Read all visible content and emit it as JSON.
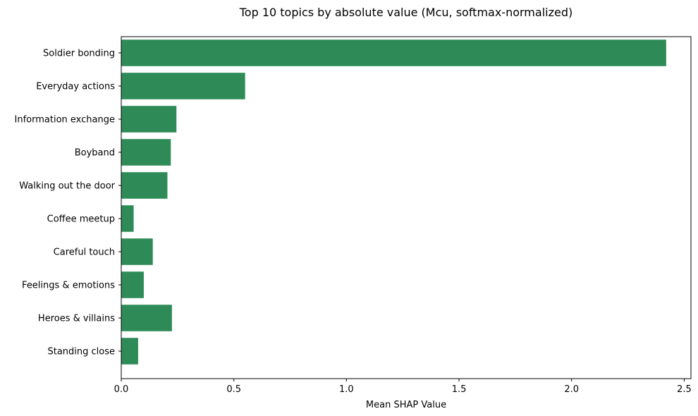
{
  "chart_data": {
    "type": "bar",
    "orientation": "horizontal",
    "title": "Top 10 topics by absolute value (Mcu, softmax-normalized)",
    "xlabel": "Mean SHAP Value",
    "ylabel": "",
    "categories": [
      "Soldier bonding",
      "Everyday actions",
      "Information exchange",
      "Boyband",
      "Walking out the door",
      "Coffee meetup",
      "Careful touch",
      "Feelings & emotions",
      "Heroes & villains",
      "Standing close"
    ],
    "values": [
      2.42,
      0.55,
      0.245,
      0.22,
      0.205,
      0.055,
      0.14,
      0.1,
      0.225,
      0.075
    ],
    "xlim": [
      0,
      2.53
    ],
    "xticks": [
      0.0,
      0.5,
      1.0,
      1.5,
      2.0,
      2.5
    ],
    "xtick_labels": [
      "0.0",
      "0.5",
      "1.0",
      "1.5",
      "2.0",
      "2.5"
    ],
    "grid": false,
    "bar_color": "#2e8b57"
  }
}
